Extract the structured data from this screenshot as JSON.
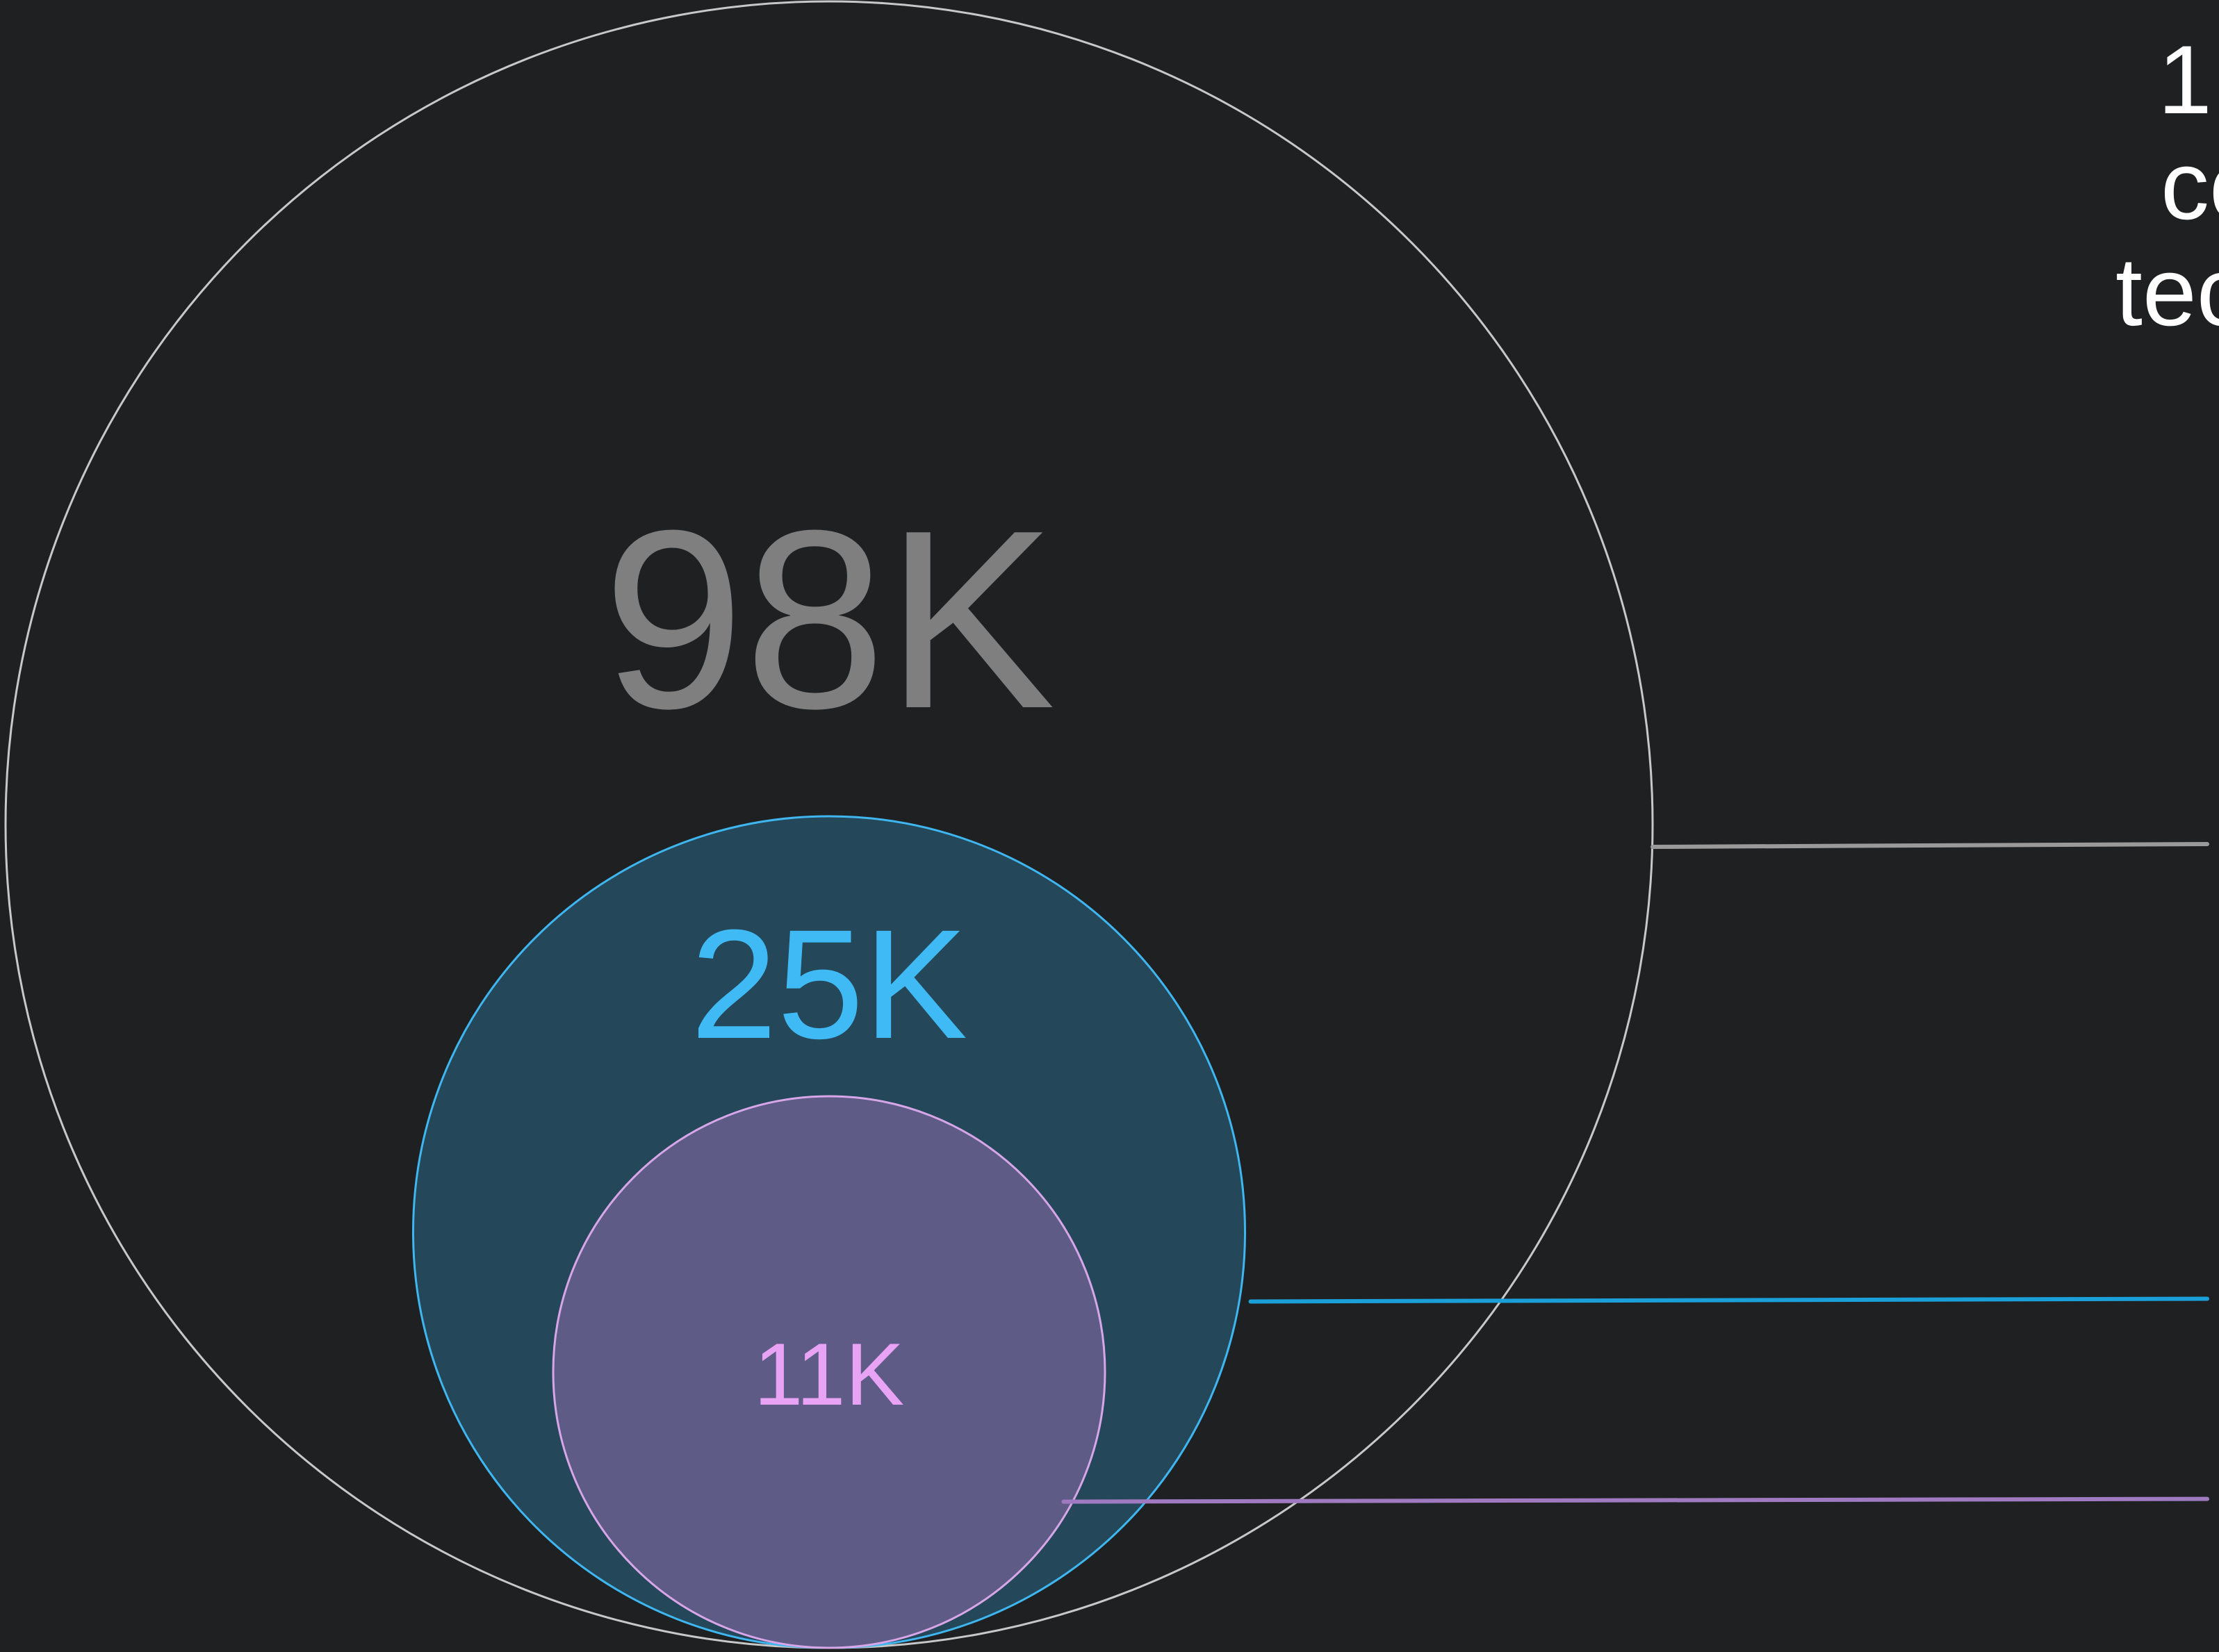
{
  "chart_data": {
    "type": "nested_circles",
    "values": [
      98000,
      25000,
      11000
    ],
    "value_labels": [
      "98K",
      "25K",
      "11K"
    ],
    "fills": [
      "none",
      "#24475a",
      "#5e5b87"
    ],
    "strokes": [
      "#c8c8c8",
      "#3fb6f0",
      "#d7a6e8"
    ],
    "label_colors": [
      "#7f7f7f",
      "#3fbaf5",
      "#e9a3f5"
    ],
    "line_colors": [
      "#9a9a9a",
      "#1a9fd8",
      "#a07ac0"
    ]
  },
  "side_text": [
    "1",
    "co",
    "tec"
  ]
}
